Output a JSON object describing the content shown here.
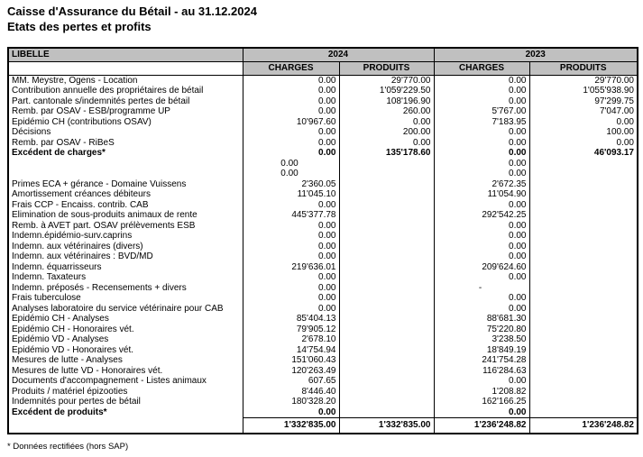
{
  "title": "Caisse d'Assurance du Bétail - au 31.12.2024",
  "subtitle": "Etats des pertes et profits",
  "footnote": "* Données rectifiées (hors SAP)",
  "colors": {
    "header_bg": "#c0c0c0",
    "border": "#000000",
    "page_bg": "#ffffff"
  },
  "table": {
    "label_header": "LIBELLE",
    "year_headers": [
      "2024",
      "2023"
    ],
    "sub_headers": [
      "CHARGES",
      "PRODUITS",
      "CHARGES",
      "PRODUITS"
    ],
    "rows": [
      {
        "label": "MM. Meystre, Ogens - Location",
        "values": [
          "0.00",
          "29'770.00",
          "0.00",
          "29'770.00"
        ]
      },
      {
        "label": "Contribution annuelle des propriétaires de bétail",
        "values": [
          "0.00",
          "1'059'229.50",
          "0.00",
          "1'055'938.90"
        ]
      },
      {
        "label": "Part. cantonale s/indemnités pertes de bétail",
        "values": [
          "0.00",
          "108'196.90",
          "0.00",
          "97'299.75"
        ]
      },
      {
        "label": "Remb. par OSAV - ESB/programme UP",
        "values": [
          "0.00",
          "260.00",
          "5'767.00",
          "7'047.00"
        ]
      },
      {
        "label": "Epidémio CH (contributions OSAV)",
        "values": [
          "10'967.60",
          "0.00",
          "7'183.95",
          "0.00"
        ]
      },
      {
        "label": "Décisions",
        "values": [
          "0.00",
          "200.00",
          "0.00",
          "100.00"
        ]
      },
      {
        "label": "Remb. par OSAV - RiBeS",
        "values": [
          "0.00",
          "0.00",
          "0.00",
          "0.00"
        ]
      },
      {
        "label": "Excédent de charges*",
        "bold": true,
        "values": [
          "0.00",
          "135'178.60",
          "0.00",
          "46'093.17"
        ]
      },
      {
        "label": "",
        "values": [
          "0.00",
          "",
          "0.00",
          ""
        ],
        "align": [
          "center",
          "",
          "right",
          ""
        ]
      },
      {
        "label": "",
        "values": [
          "0.00",
          "",
          "0.00",
          ""
        ],
        "align": [
          "center",
          "",
          "right",
          ""
        ]
      },
      {
        "label": "Primes ECA + gérance  - Domaine Vuissens",
        "values": [
          "2'360.05",
          "",
          "2'672.35",
          ""
        ]
      },
      {
        "label": "Amortissement créances débiteurs",
        "values": [
          "11'045.10",
          "",
          "11'054.90",
          ""
        ]
      },
      {
        "label": "Frais CCP - Encaiss. contrib. CAB",
        "values": [
          "0.00",
          "",
          "0.00",
          ""
        ]
      },
      {
        "label": "Elimination de sous-produits animaux de rente",
        "values": [
          "445'377.78",
          "",
          "292'542.25",
          ""
        ]
      },
      {
        "label": "Remb. à AVET part. OSAV prélèvements ESB",
        "values": [
          "0.00",
          "",
          "0.00",
          ""
        ]
      },
      {
        "label": "Indemn.épidémio-surv.caprins",
        "values": [
          "0.00",
          "",
          "0.00",
          ""
        ]
      },
      {
        "label": "Indemn. aux vétérinaires (divers)",
        "values": [
          "0.00",
          "",
          "0.00",
          ""
        ]
      },
      {
        "label": "Indemn. aux vétérinaires : BVD/MD",
        "values": [
          "0.00",
          "",
          "0.00",
          ""
        ]
      },
      {
        "label": "Indemn. équarrisseurs",
        "values": [
          "219'636.01",
          "",
          "209'624.60",
          ""
        ]
      },
      {
        "label": "Indemn. Taxateurs",
        "values": [
          "0.00",
          "",
          "0.00",
          ""
        ]
      },
      {
        "label": "Indemn. préposés - Recensements + divers",
        "values": [
          "0.00",
          "",
          "-",
          ""
        ],
        "align": [
          "",
          "",
          "center",
          ""
        ]
      },
      {
        "label": "Frais tuberculose",
        "values": [
          "0.00",
          "",
          "0.00",
          ""
        ]
      },
      {
        "label": "Analyses laboratoire du service vétérinaire pour CAB",
        "values": [
          "0.00",
          "",
          "0.00",
          ""
        ]
      },
      {
        "label": "Epidémio CH - Analyses",
        "values": [
          "85'404.13",
          "",
          "88'681.30",
          ""
        ]
      },
      {
        "label": "Epidémio CH - Honoraires vét.",
        "values": [
          "79'905.12",
          "",
          "75'220.80",
          ""
        ]
      },
      {
        "label": "Epidémio VD - Analyses",
        "values": [
          "2'678.10",
          "",
          "3'238.50",
          ""
        ]
      },
      {
        "label": "Epidémio VD - Honoraires vét.",
        "values": [
          "14'754.94",
          "",
          "18'849.19",
          ""
        ]
      },
      {
        "label": "Mesures de lutte - Analyses",
        "values": [
          "151'060.43",
          "",
          "241'754.28",
          ""
        ]
      },
      {
        "label": "Mesures de lutte VD - Honoraires vét.",
        "values": [
          "120'263.49",
          "",
          "116'284.63",
          ""
        ]
      },
      {
        "label": "Documents d'accompagnement - Listes animaux",
        "values": [
          "607.65",
          "",
          "0.00",
          ""
        ]
      },
      {
        "label": "Produits / matériel épizooties",
        "values": [
          "8'446.40",
          "",
          "1'208.82",
          ""
        ]
      },
      {
        "label": "Indemnités pour pertes de bétail",
        "values": [
          "180'328.20",
          "",
          "162'166.25",
          ""
        ]
      },
      {
        "label": "Excédent de produits*",
        "bold": true,
        "values": [
          "0.00",
          "",
          "0.00",
          ""
        ]
      }
    ],
    "totals": [
      "1'332'835.00",
      "1'332'835.00",
      "1'236'248.82",
      "1'236'248.82"
    ]
  }
}
